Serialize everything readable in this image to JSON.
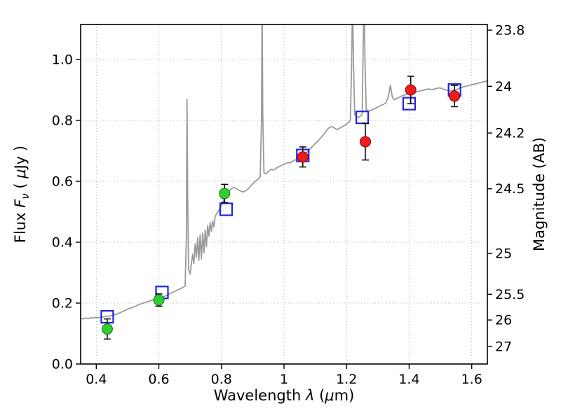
{
  "chart_data": {
    "type": "line",
    "title": "",
    "xlabel": "Wavelength λ (μm)",
    "ylabel": "Flux Fν ( μJy )",
    "ylabel_right": "Magnitude (AB)",
    "xlabel_parts": [
      {
        "t": "Wavelength "
      },
      {
        "t": "λ",
        "i": true
      },
      {
        "t": " ("
      },
      {
        "t": "μ",
        "i": true
      },
      {
        "t": "m)"
      }
    ],
    "ylabel_left_parts": [
      {
        "t": "Flux "
      },
      {
        "t": "F",
        "i": true
      },
      {
        "t": "ν",
        "i": true,
        "sub": true
      },
      {
        "t": " ( "
      },
      {
        "t": "μ",
        "i": true
      },
      {
        "t": "Jy )"
      }
    ],
    "ylabel_right_parts": [
      {
        "t": "Magnitude (AB)"
      }
    ],
    "xlim": [
      0.35,
      1.65
    ],
    "ylim": [
      0.0,
      1.115
    ],
    "grid": true,
    "x_ticks": [
      0.4,
      0.6,
      0.8,
      1.0,
      1.2,
      1.4,
      1.6
    ],
    "x_tick_labels": [
      "0.4",
      "0.6",
      "0.8",
      "1",
      "1.2",
      "1.4",
      "1.6"
    ],
    "y_ticks_left": [
      0.0,
      0.2,
      0.4,
      0.6,
      0.8,
      1.0
    ],
    "y_tick_labels_left": [
      "0.0",
      "0.2",
      "0.4",
      "0.6",
      "0.8",
      "1.0"
    ],
    "right_axis": {
      "zeropoint_ab": 23.9,
      "tick_mags": [
        23.8,
        24.0,
        24.2,
        24.5,
        25.0,
        25.5,
        26.0,
        27.0
      ],
      "tick_labels": [
        "23.8",
        "24",
        "24.2",
        "24.5",
        "25",
        "25.5",
        "26",
        "27"
      ]
    },
    "colors": {
      "spectrum": "#9a9a9a",
      "grid": "#b0b0b0",
      "frame": "#000000",
      "green_marker": "#33cc33",
      "green_edge": "#0c7a0c",
      "red_marker": "#ee1c1c",
      "red_edge": "#8b0000",
      "blue_square": "#2222dd",
      "errorbar": "#000000"
    },
    "series": [
      {
        "name": "synthetic-photometry-squares",
        "marker": "square",
        "fill": "none",
        "edge": "#2222dd",
        "points": [
          {
            "x": 0.435,
            "y": 0.155,
            "err": 0
          },
          {
            "x": 0.61,
            "y": 0.235,
            "err": 0
          },
          {
            "x": 0.815,
            "y": 0.508,
            "err": 0
          },
          {
            "x": 1.06,
            "y": 0.685,
            "err": 0
          },
          {
            "x": 1.25,
            "y": 0.81,
            "err": 0
          },
          {
            "x": 1.4,
            "y": 0.855,
            "err": 0
          },
          {
            "x": 1.545,
            "y": 0.9,
            "err": 0
          }
        ]
      },
      {
        "name": "optical-photometry-green-circles",
        "marker": "circle",
        "fill": "#33cc33",
        "edge": "#0c7a0c",
        "errorbar_color": "#000000",
        "points": [
          {
            "x": 0.435,
            "y": 0.115,
            "err": 0.033
          },
          {
            "x": 0.6,
            "y": 0.21,
            "err": 0.02
          },
          {
            "x": 0.81,
            "y": 0.56,
            "err": 0.03
          }
        ]
      },
      {
        "name": "infrared-photometry-red-circles",
        "marker": "circle",
        "fill": "#ee1c1c",
        "edge": "#8b0000",
        "errorbar_color": "#000000",
        "points": [
          {
            "x": 1.06,
            "y": 0.68,
            "err": 0.033
          },
          {
            "x": 1.26,
            "y": 0.73,
            "err": 0.06
          },
          {
            "x": 1.405,
            "y": 0.9,
            "err": 0.045
          },
          {
            "x": 1.545,
            "y": 0.88,
            "err": 0.035
          }
        ]
      }
    ],
    "spectrum": {
      "name": "model-spectrum",
      "color": "#9a9a9a",
      "points": [
        [
          0.35,
          0.15
        ],
        [
          0.358,
          0.148
        ],
        [
          0.366,
          0.151
        ],
        [
          0.374,
          0.149
        ],
        [
          0.382,
          0.152
        ],
        [
          0.39,
          0.151
        ],
        [
          0.398,
          0.153
        ],
        [
          0.406,
          0.152
        ],
        [
          0.414,
          0.154
        ],
        [
          0.422,
          0.155
        ],
        [
          0.43,
          0.157
        ],
        [
          0.438,
          0.156
        ],
        [
          0.446,
          0.159
        ],
        [
          0.454,
          0.161
        ],
        [
          0.462,
          0.163
        ],
        [
          0.47,
          0.166
        ],
        [
          0.478,
          0.169
        ],
        [
          0.486,
          0.173
        ],
        [
          0.494,
          0.177
        ],
        [
          0.502,
          0.181
        ],
        [
          0.51,
          0.184
        ],
        [
          0.518,
          0.187
        ],
        [
          0.526,
          0.19
        ],
        [
          0.534,
          0.194
        ],
        [
          0.542,
          0.197
        ],
        [
          0.55,
          0.2
        ],
        [
          0.558,
          0.203
        ],
        [
          0.566,
          0.205
        ],
        [
          0.574,
          0.208
        ],
        [
          0.582,
          0.21
        ],
        [
          0.59,
          0.213
        ],
        [
          0.598,
          0.215
        ],
        [
          0.606,
          0.218
        ],
        [
          0.614,
          0.221
        ],
        [
          0.622,
          0.224
        ],
        [
          0.63,
          0.228
        ],
        [
          0.638,
          0.232
        ],
        [
          0.646,
          0.236
        ],
        [
          0.654,
          0.24
        ],
        [
          0.662,
          0.244
        ],
        [
          0.67,
          0.248
        ],
        [
          0.678,
          0.252
        ],
        [
          0.684,
          0.256
        ],
        [
          0.688,
          0.42
        ],
        [
          0.69,
          0.87
        ],
        [
          0.692,
          0.56
        ],
        [
          0.695,
          0.31
        ],
        [
          0.7,
          0.295
        ],
        [
          0.704,
          0.33
        ],
        [
          0.708,
          0.36
        ],
        [
          0.712,
          0.33
        ],
        [
          0.716,
          0.395
        ],
        [
          0.72,
          0.35
        ],
        [
          0.724,
          0.415
        ],
        [
          0.728,
          0.34
        ],
        [
          0.732,
          0.425
        ],
        [
          0.736,
          0.345
        ],
        [
          0.74,
          0.43
        ],
        [
          0.744,
          0.365
        ],
        [
          0.748,
          0.44
        ],
        [
          0.752,
          0.385
        ],
        [
          0.756,
          0.455
        ],
        [
          0.76,
          0.42
        ],
        [
          0.764,
          0.465
        ],
        [
          0.768,
          0.435
        ],
        [
          0.772,
          0.47
        ],
        [
          0.776,
          0.45
        ],
        [
          0.78,
          0.485
        ],
        [
          0.786,
          0.495
        ],
        [
          0.792,
          0.505
        ],
        [
          0.798,
          0.515
        ],
        [
          0.804,
          0.53
        ],
        [
          0.81,
          0.545
        ],
        [
          0.816,
          0.558
        ],
        [
          0.822,
          0.566
        ],
        [
          0.828,
          0.572
        ],
        [
          0.834,
          0.577
        ],
        [
          0.84,
          0.58
        ],
        [
          0.846,
          0.577
        ],
        [
          0.852,
          0.573
        ],
        [
          0.858,
          0.57
        ],
        [
          0.864,
          0.567
        ],
        [
          0.87,
          0.565
        ],
        [
          0.876,
          0.568
        ],
        [
          0.882,
          0.572
        ],
        [
          0.888,
          0.578
        ],
        [
          0.894,
          0.585
        ],
        [
          0.9,
          0.592
        ],
        [
          0.906,
          0.598
        ],
        [
          0.912,
          0.603
        ],
        [
          0.918,
          0.608
        ],
        [
          0.924,
          0.615
        ],
        [
          0.928,
          0.8
        ],
        [
          0.93,
          1.2
        ],
        [
          0.932,
          0.82
        ],
        [
          0.936,
          0.628
        ],
        [
          0.942,
          0.624
        ],
        [
          0.948,
          0.63
        ],
        [
          0.954,
          0.636
        ],
        [
          0.96,
          0.64
        ],
        [
          0.966,
          0.637
        ],
        [
          0.972,
          0.641
        ],
        [
          0.978,
          0.645
        ],
        [
          0.984,
          0.648
        ],
        [
          0.99,
          0.651
        ],
        [
          0.996,
          0.654
        ],
        [
          1.002,
          0.657
        ],
        [
          1.008,
          0.659
        ],
        [
          1.014,
          0.662
        ],
        [
          1.02,
          0.66
        ],
        [
          1.026,
          0.665
        ],
        [
          1.032,
          0.668
        ],
        [
          1.038,
          0.671
        ],
        [
          1.044,
          0.674
        ],
        [
          1.05,
          0.677
        ],
        [
          1.056,
          0.68
        ],
        [
          1.062,
          0.684
        ],
        [
          1.068,
          0.69
        ],
        [
          1.074,
          0.696
        ],
        [
          1.08,
          0.702
        ],
        [
          1.086,
          0.709
        ],
        [
          1.092,
          0.716
        ],
        [
          1.098,
          0.722
        ],
        [
          1.104,
          0.728
        ],
        [
          1.11,
          0.734
        ],
        [
          1.116,
          0.741
        ],
        [
          1.122,
          0.748
        ],
        [
          1.128,
          0.756
        ],
        [
          1.134,
          0.764
        ],
        [
          1.14,
          0.772
        ],
        [
          1.146,
          0.777
        ],
        [
          1.152,
          0.78
        ],
        [
          1.158,
          0.777
        ],
        [
          1.164,
          0.773
        ],
        [
          1.17,
          0.77
        ],
        [
          1.176,
          0.773
        ],
        [
          1.182,
          0.777
        ],
        [
          1.188,
          0.78
        ],
        [
          1.194,
          0.784
        ],
        [
          1.2,
          0.788
        ],
        [
          1.206,
          0.793
        ],
        [
          1.212,
          0.8
        ],
        [
          1.216,
          0.98
        ],
        [
          1.219,
          1.2
        ],
        [
          1.222,
          1.0
        ],
        [
          1.226,
          0.82
        ],
        [
          1.232,
          0.812
        ],
        [
          1.238,
          0.81
        ],
        [
          1.244,
          0.814
        ],
        [
          1.25,
          0.82
        ],
        [
          1.253,
          1.05
        ],
        [
          1.256,
          1.2
        ],
        [
          1.259,
          0.98
        ],
        [
          1.263,
          0.835
        ],
        [
          1.27,
          0.83
        ],
        [
          1.278,
          0.833
        ],
        [
          1.286,
          0.837
        ],
        [
          1.294,
          0.841
        ],
        [
          1.302,
          0.845
        ],
        [
          1.31,
          0.849
        ],
        [
          1.318,
          0.853
        ],
        [
          1.326,
          0.857
        ],
        [
          1.334,
          0.88
        ],
        [
          1.34,
          0.915
        ],
        [
          1.346,
          0.878
        ],
        [
          1.352,
          0.868
        ],
        [
          1.36,
          0.872
        ],
        [
          1.368,
          0.876
        ],
        [
          1.376,
          0.88
        ],
        [
          1.384,
          0.883
        ],
        [
          1.392,
          0.886
        ],
        [
          1.4,
          0.888
        ],
        [
          1.408,
          0.89
        ],
        [
          1.416,
          0.892
        ],
        [
          1.424,
          0.894
        ],
        [
          1.432,
          0.896
        ],
        [
          1.44,
          0.898
        ],
        [
          1.448,
          0.9
        ],
        [
          1.456,
          0.902
        ],
        [
          1.464,
          0.903
        ],
        [
          1.472,
          0.901
        ],
        [
          1.48,
          0.903
        ],
        [
          1.488,
          0.905
        ],
        [
          1.496,
          0.907
        ],
        [
          1.504,
          0.905
        ],
        [
          1.512,
          0.902
        ],
        [
          1.52,
          0.899
        ],
        [
          1.528,
          0.897
        ],
        [
          1.536,
          0.898
        ],
        [
          1.544,
          0.9
        ],
        [
          1.552,
          0.902
        ],
        [
          1.56,
          0.905
        ],
        [
          1.568,
          0.908
        ],
        [
          1.576,
          0.911
        ],
        [
          1.584,
          0.913
        ],
        [
          1.592,
          0.915
        ],
        [
          1.6,
          0.917
        ],
        [
          1.608,
          0.919
        ],
        [
          1.616,
          0.921
        ],
        [
          1.624,
          0.923
        ],
        [
          1.632,
          0.925
        ],
        [
          1.64,
          0.927
        ],
        [
          1.648,
          0.929
        ],
        [
          1.65,
          0.93
        ]
      ]
    }
  }
}
